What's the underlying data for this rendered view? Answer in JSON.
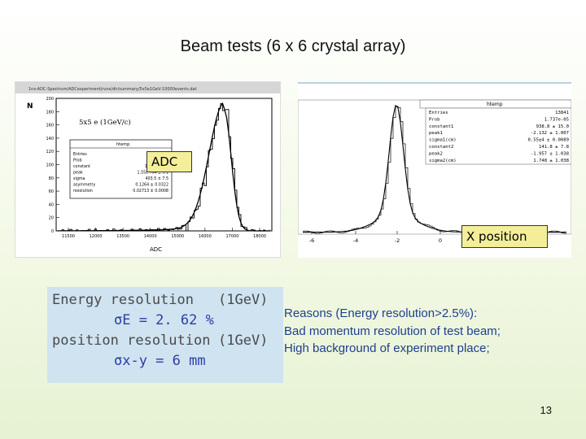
{
  "slide": {
    "title": "Beam tests (6 x 6 crystal array)",
    "page_number": "13"
  },
  "callouts": {
    "adc": "ADC",
    "x_position": "X position"
  },
  "adc_plot": {
    "header": "1ns-ADC-Spectrum/ADCexperiment/runs/dir/summary/5x5e1GeV-10000events.dat",
    "y_axis_label": "N",
    "inner_title": "5x5 e (1GeV/c)",
    "stats_title": "htemp",
    "stats": [
      {
        "name": "Entries",
        "value": ""
      },
      {
        "name": "Prob",
        "value": ""
      },
      {
        "name": "constant",
        "value": "1.58e+04 ±"
      },
      {
        "name": "peak",
        "value": "1.55e+04 ± 5.1"
      },
      {
        "name": "sigma",
        "value": "403.5 ± 7.5"
      },
      {
        "name": "asymmetry",
        "value": "0.1264 ± 0.0322"
      },
      {
        "name": "resolution",
        "value": "0.02713 ± 0.0008"
      }
    ],
    "y_ticks": [
      "200",
      "180",
      "160",
      "140",
      "120",
      "100",
      "80",
      "60",
      "40",
      "20",
      "0"
    ],
    "x_ticks": [
      "11500",
      "12000",
      "13500",
      "14000",
      "15000",
      "16000",
      "17000",
      "18000"
    ],
    "x_label": "ADC"
  },
  "x_plot": {
    "stats_title": "htemp",
    "stats": [
      {
        "name": "Entries",
        "value": "13841"
      },
      {
        "name": "Prob",
        "value": "1.737e-05"
      },
      {
        "name": "constant1",
        "value": "938.8 ± 15.0"
      },
      {
        "name": "peak1",
        "value": "-2.132 ± 1.007"
      },
      {
        "name": "sigma1(cm)",
        "value": "0.55±4 ± 0.0089"
      },
      {
        "name": "constant2",
        "value": "141.8 ± 7.8"
      },
      {
        "name": "peak2",
        "value": "-1.957 ± 1.038"
      },
      {
        "name": "sigma2(cm)",
        "value": "1.748 ± 1.038"
      }
    ],
    "x_ticks": [
      "-6",
      "-4",
      "-2",
      "0"
    ]
  },
  "resolution_box": {
    "line1_label": "Energy resolution",
    "line1_condition": "(1GeV)",
    "line2_formula": "σE = 2. 62 %",
    "line3_label": "position resolution",
    "line3_condition": "(1GeV)",
    "line4_formula": "σx-y = 6 mm"
  },
  "reasons": {
    "line1": "Reasons (Energy resolution>2.5%):",
    "line2": "Bad momentum resolution of test beam;",
    "line3": "High background of experiment place;"
  }
}
